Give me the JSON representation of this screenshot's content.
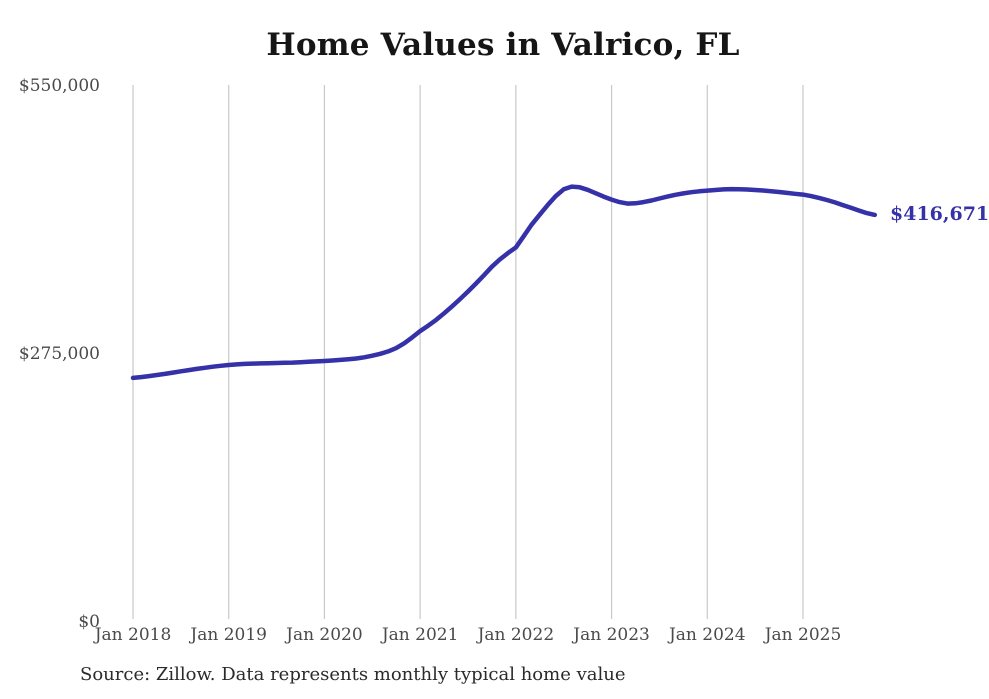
{
  "title": "Home Values in Valrico, FL",
  "source_note": "Source: Zillow. Data represents monthly typical home value",
  "colors": {
    "background": "#ffffff",
    "line": "#3531a8",
    "grid": "#c9c9c9",
    "axis_text": "#4a4a4a",
    "title_text": "#161616",
    "end_label_text": "#3531a8",
    "source_text": "#2a2a2a"
  },
  "chart_data": {
    "type": "line",
    "title": "Home Values in Valrico, FL",
    "xlabel": "",
    "ylabel": "",
    "ylim": [
      0,
      550000
    ],
    "grid": "vertical-only",
    "legend": "none",
    "x_unit": "month",
    "x_start": "Jan 2018",
    "x_ticks": [
      "Jan 2018",
      "Jan 2019",
      "Jan 2020",
      "Jan 2021",
      "Jan 2022",
      "Jan 2023",
      "Jan 2024",
      "Jan 2025"
    ],
    "y_ticks": [
      {
        "label": "$550,000",
        "value": 550000
      },
      {
        "label": "$275,000",
        "value": 275000
      },
      {
        "label": "$0",
        "value": 0
      }
    ],
    "series": [
      {
        "name": "Typical home value",
        "values": [
          249400,
          250300,
          251300,
          252400,
          253600,
          254900,
          256200,
          257500,
          258700,
          259800,
          260900,
          261900,
          262700,
          263300,
          263800,
          264100,
          264300,
          264500,
          264700,
          264900,
          265200,
          265600,
          266000,
          266400,
          266800,
          267300,
          267900,
          268600,
          269400,
          270600,
          272200,
          274200,
          276600,
          280000,
          285000,
          291000,
          297500,
          303000,
          309000,
          315700,
          322800,
          330300,
          338100,
          346300,
          354800,
          363600,
          371000,
          377500,
          383400,
          395000,
          407000,
          417000,
          427000,
          436000,
          443000,
          445700,
          445000,
          442500,
          439000,
          435500,
          432400,
          429800,
          428300,
          428600,
          429800,
          431500,
          433500,
          435500,
          437300,
          438800,
          440000,
          440900,
          441600,
          442300,
          442900,
          443200,
          443100,
          442800,
          442300,
          441700,
          441000,
          440200,
          439300,
          438400,
          437500,
          436000,
          434200,
          432000,
          429500,
          426800,
          424000,
          421200,
          418600,
          416671
        ],
        "last_value": 416671,
        "last_value_label": "$416,671"
      }
    ]
  }
}
